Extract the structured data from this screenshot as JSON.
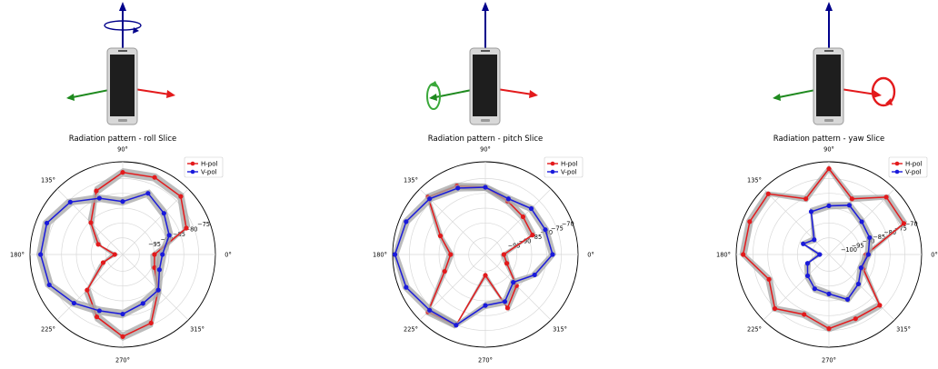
{
  "colors": {
    "hpol": "#e31a1c",
    "vpol": "#1a1adb",
    "band": "#a6a6a6",
    "grid": "#d9d9d9",
    "axis_z": "#00008b",
    "axis_y": "#1f8a1f",
    "axis_x": "#e31a1c",
    "rotation": [
      "#00008b",
      "#3aa83a",
      "#e31a1c"
    ]
  },
  "icons": [
    "phone-axes-roll-icon",
    "phone-axes-pitch-icon",
    "phone-axes-yaw-icon"
  ],
  "chart_data": [
    {
      "type": "polar-line",
      "title": "Radiation pattern - roll Slice",
      "theta_ticks": [
        "0°",
        "",
        "90°",
        "135°",
        "180°",
        "225°",
        "270°",
        "315°"
      ],
      "r_ticks": [
        "-95",
        "-90",
        "-85",
        "-80",
        "-75"
      ],
      "rlim": [
        -105,
        -70
      ],
      "angles": [
        0,
        22.5,
        45,
        67.5,
        90,
        112.5,
        135,
        157.5,
        180,
        202.5,
        225,
        247.5,
        270,
        292.5,
        315,
        337.5
      ],
      "legend": [
        "H-pol",
        "V-pol"
      ],
      "series": [
        {
          "name": "H-pol",
          "values": [
            -93,
            -79,
            -74,
            -73.5,
            -74,
            -79,
            -88,
            -95,
            -102,
            -97,
            -86,
            -79.5,
            -74,
            -77,
            -86,
            -92
          ]
        },
        {
          "name": "V-pol",
          "values": [
            -90,
            -86,
            -83,
            -80,
            -85,
            -82,
            -77,
            -74,
            -74,
            -75,
            -79,
            -82,
            -82.5,
            -85,
            -86,
            -90
          ]
        }
      ]
    },
    {
      "type": "polar-line",
      "title": "Radiation pattern - pitch Slice",
      "theta_ticks": [
        "0°",
        "",
        "90°",
        "135°",
        "180°",
        "225°",
        "270°",
        "315°"
      ],
      "r_ticks": [
        "-95",
        "-90",
        "-85",
        "-80",
        "-75",
        "-70"
      ],
      "rlim": [
        -105,
        -65
      ],
      "angles": [
        0,
        22.5,
        45,
        67.5,
        90,
        112.5,
        135,
        157.5,
        180,
        202.5,
        225,
        247.5,
        270,
        292.5,
        315,
        337.5
      ],
      "legend": [
        "H-pol",
        "V-pol"
      ],
      "series": [
        {
          "name": "H-pol",
          "values": [
            -97,
            -83,
            -82,
            -80,
            -76,
            -73,
            -70,
            -84,
            -90,
            -86,
            -70,
            -72,
            -96,
            -80,
            -86,
            -95
          ]
        },
        {
          "name": "V-pol",
          "values": [
            -76,
            -77,
            -77,
            -79,
            -76,
            -74,
            -71,
            -68,
            -66,
            -68,
            -71,
            -72,
            -83,
            -83,
            -88,
            -82
          ]
        }
      ]
    },
    {
      "type": "polar-line",
      "title": "Radiation pattern - yaw Slice",
      "theta_ticks": [
        "0°",
        "",
        "90°",
        "135°",
        "180°",
        "225°",
        "270°",
        "315°"
      ],
      "r_ticks": [
        "-100",
        "-95",
        "-90",
        "-85",
        "-80",
        "-75",
        "-70"
      ],
      "rlim": [
        -105,
        -65
      ],
      "angles": [
        0,
        22.5,
        45,
        67.5,
        90,
        112.5,
        135,
        157.5,
        180,
        202.5,
        225,
        247.5,
        270,
        292.5,
        315,
        337.5
      ],
      "legend": [
        "H-pol",
        "V-pol"
      ],
      "series": [
        {
          "name": "H-pol",
          "values": [
            -89,
            -70,
            -70,
            -79,
            -68,
            -79,
            -68,
            -68,
            -68,
            -77,
            -72,
            -77,
            -73,
            -75,
            -74,
            -89
          ]
        },
        {
          "name": "V-pol",
          "values": [
            -88,
            -86,
            -85,
            -82,
            -84,
            -85,
            -96,
            -93,
            -101,
            -95,
            -92,
            -89,
            -88,
            -84,
            -87,
            -90
          ]
        }
      ]
    }
  ]
}
